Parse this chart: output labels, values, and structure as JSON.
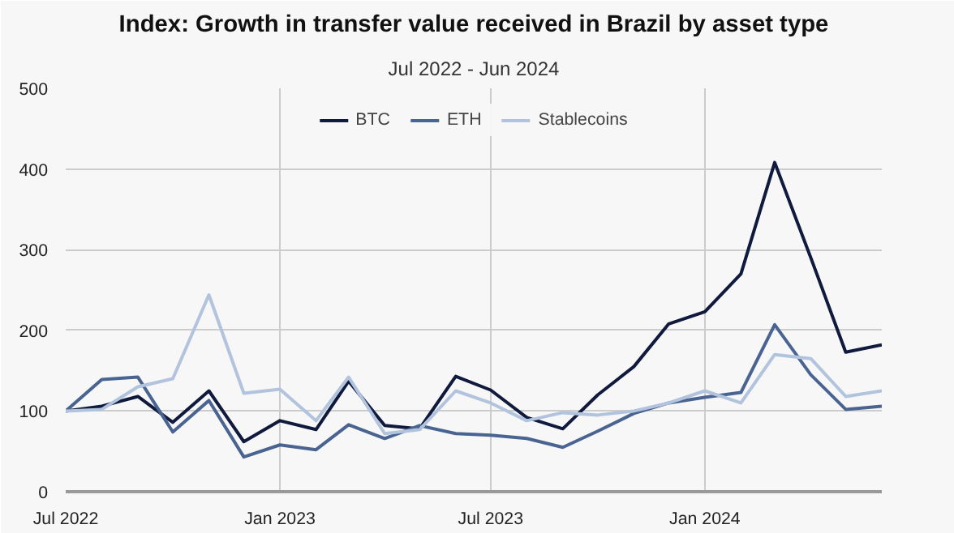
{
  "chart_data": {
    "type": "line",
    "title": "Index: Growth in transfer value received in Brazil by asset type",
    "subtitle": "Jul 2022 - Jun 2024",
    "x": [
      "2022-07",
      "2022-08",
      "2022-09",
      "2022-10",
      "2022-11",
      "2022-12",
      "2023-01",
      "2023-02",
      "2023-03",
      "2023-04",
      "2023-05",
      "2023-06",
      "2023-07",
      "2023-08",
      "2023-09",
      "2023-10",
      "2023-11",
      "2023-12",
      "2024-01",
      "2024-02",
      "2024-03",
      "2024-04",
      "2024-05",
      "2024-06"
    ],
    "series": [
      {
        "name": "BTC",
        "color": "#0f1a3d",
        "values": [
          100,
          106,
          118,
          86,
          125,
          62,
          88,
          77,
          137,
          82,
          78,
          143,
          126,
          92,
          78,
          120,
          155,
          208,
          223,
          270,
          408,
          290,
          173,
          182
        ]
      },
      {
        "name": "ETH",
        "color": "#4a6491",
        "values": [
          100,
          139,
          142,
          74,
          113,
          43,
          58,
          52,
          83,
          66,
          82,
          72,
          70,
          66,
          55,
          75,
          97,
          110,
          117,
          123,
          207,
          145,
          102,
          106
        ]
      },
      {
        "name": "Stablecoins",
        "color": "#b2c3dd",
        "values": [
          100,
          102,
          130,
          140,
          244,
          122,
          127,
          88,
          142,
          72,
          77,
          125,
          110,
          88,
          98,
          95,
          100,
          110,
          125,
          110,
          170,
          165,
          118,
          125
        ]
      }
    ],
    "xlim": [
      "2022-07",
      "2024-06"
    ],
    "xticks": [
      {
        "value": "2022-07",
        "label": "Jul 2022"
      },
      {
        "value": "2023-01",
        "label": "Jan 2023"
      },
      {
        "value": "2023-07",
        "label": "Jul 2023"
      },
      {
        "value": "2024-01",
        "label": "Jan 2024"
      }
    ],
    "ylim": [
      0,
      500
    ],
    "yticks": [
      0,
      100,
      200,
      300,
      400,
      500
    ],
    "grid": true,
    "legend": "top"
  }
}
